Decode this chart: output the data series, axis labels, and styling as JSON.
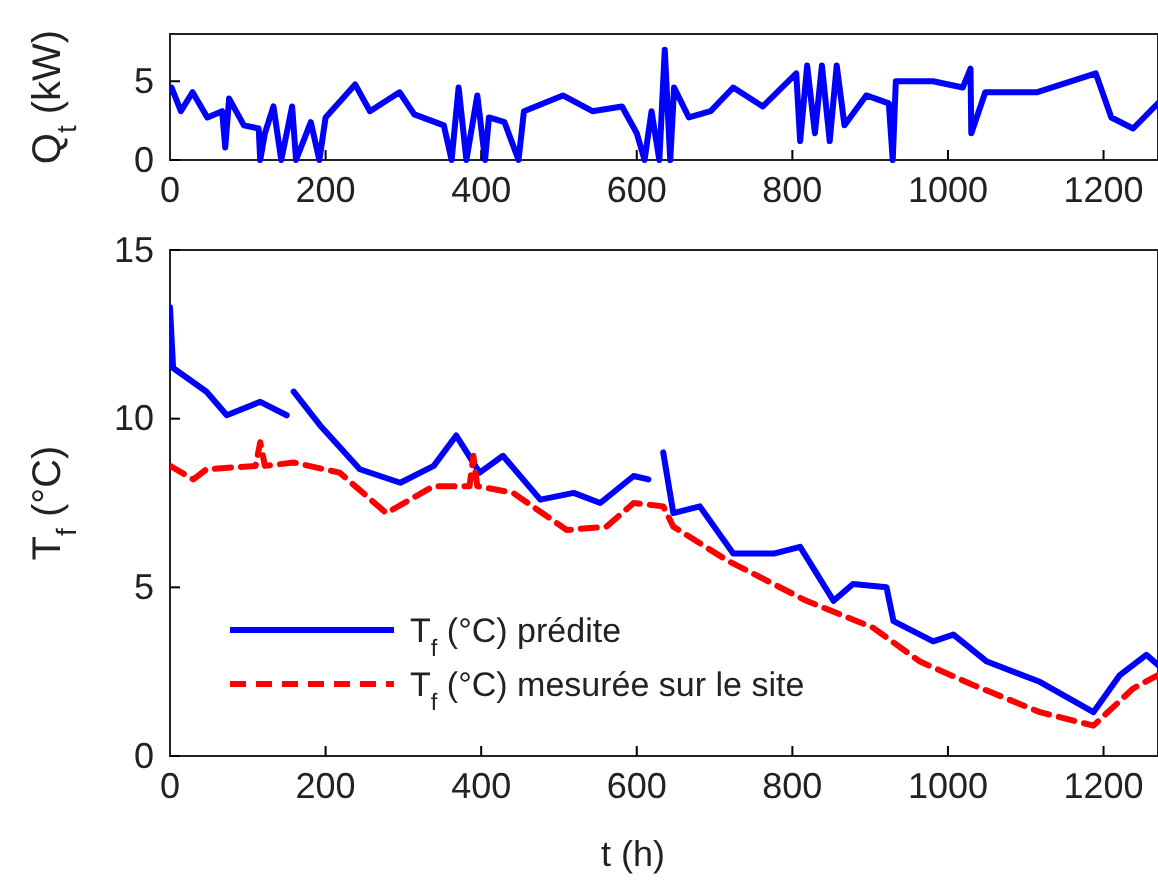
{
  "chart_data": [
    {
      "type": "line",
      "ylabel": "Q$_{t}$ (kW)",
      "xlim": [
        0,
        1270
      ],
      "xticks": [
        0,
        200,
        400,
        600,
        800,
        1000,
        1200
      ],
      "ylim": [
        0,
        8
      ],
      "yticks": [
        0,
        5
      ],
      "grid": false,
      "legend": false,
      "series": [
        {
          "color": "#0000ff",
          "line_style": "solid",
          "x": [
            2,
            14,
            29,
            48,
            67,
            71,
            76,
            95,
            114,
            116,
            122,
            133,
            143,
            157,
            162,
            181,
            192,
            200,
            238,
            257,
            295,
            314,
            352,
            362,
            371,
            381,
            395,
            405,
            410,
            430,
            448,
            455,
            505,
            543,
            581,
            600,
            610,
            619,
            629,
            636,
            643,
            648,
            667,
            695,
            724,
            762,
            805,
            810,
            819,
            829,
            838,
            848,
            857,
            867,
            895,
            924,
            929,
            933,
            981,
            1019,
            1029,
            1030,
            1048,
            1114,
            1190,
            1210,
            1238,
            1270
          ],
          "values": [
            4.6,
            3.1,
            4.3,
            2.7,
            3.1,
            0.8,
            3.9,
            2.2,
            2.0,
            0,
            1.7,
            3.4,
            0,
            3.4,
            0,
            2.4,
            0,
            2.7,
            4.8,
            3.1,
            4.3,
            2.9,
            2.2,
            0,
            4.6,
            0,
            4.1,
            0,
            2.7,
            2.4,
            0,
            3.1,
            4.1,
            3.1,
            3.4,
            1.7,
            0,
            3.1,
            0,
            7.0,
            0,
            4.6,
            2.7,
            3.1,
            4.6,
            3.4,
            5.5,
            1.2,
            6.0,
            1.7,
            6.0,
            1.2,
            6.0,
            2.2,
            4.1,
            3.6,
            0,
            5.0,
            5.0,
            4.6,
            5.8,
            1.7,
            4.3,
            4.3,
            5.5,
            2.7,
            2.0,
            3.6
          ]
        }
      ]
    },
    {
      "type": "line",
      "xlabel": "t (h)",
      "ylabel": "T$_{f}$ (°C)",
      "xlim": [
        0,
        1270
      ],
      "xticks": [
        0,
        200,
        400,
        600,
        800,
        1000,
        1200
      ],
      "ylim": [
        0,
        15
      ],
      "yticks": [
        0,
        5,
        10,
        15
      ],
      "grid": false,
      "legend": "bottom left",
      "series": [
        {
          "name": "T$_{f}$ (°C) prédite",
          "color": "#0000ff",
          "line_style": "solid",
          "x": [
            0,
            4,
            47,
            73,
            116,
            150,
            155,
            159,
            193,
            244,
            296,
            339,
            368,
            398,
            428,
            476,
            519,
            553,
            596,
            615,
            625,
            634,
            647,
            681,
            724,
            776,
            810,
            853,
            878,
            921,
            930,
            981,
            1007,
            1050,
            1118,
            1187,
            1221,
            1255,
            1270
          ],
          "values": [
            13.3,
            11.5,
            10.8,
            10.1,
            10.5,
            10.1,
            null,
            10.8,
            9.8,
            8.5,
            8.1,
            8.6,
            9.5,
            8.4,
            8.9,
            7.6,
            7.8,
            7.5,
            8.3,
            8.2,
            null,
            9.0,
            7.2,
            7.4,
            6.0,
            6.0,
            6.2,
            4.6,
            5.1,
            5.0,
            4.0,
            3.4,
            3.6,
            2.8,
            2.2,
            1.3,
            2.4,
            3.0,
            2.7
          ]
        },
        {
          "name": "T$_{f}$ (°C) mesurée sur le site",
          "color": "#ff0000",
          "line_style": "dashed",
          "x": [
            0,
            30,
            47,
            110,
            116,
            122,
            159,
            218,
            278,
            339,
            385,
            390,
            395,
            441,
            510,
            561,
            596,
            634,
            647,
            716,
            818,
            904,
            964,
            1033,
            1118,
            1187,
            1238,
            1270
          ],
          "values": [
            8.6,
            8.2,
            8.5,
            8.6,
            9.3,
            8.6,
            8.7,
            8.4,
            7.2,
            8.0,
            8.0,
            8.9,
            8.0,
            7.8,
            6.7,
            6.8,
            7.5,
            7.4,
            6.8,
            5.8,
            4.6,
            3.8,
            2.8,
            2.1,
            1.3,
            0.9,
            2.0,
            2.4
          ]
        }
      ]
    }
  ]
}
